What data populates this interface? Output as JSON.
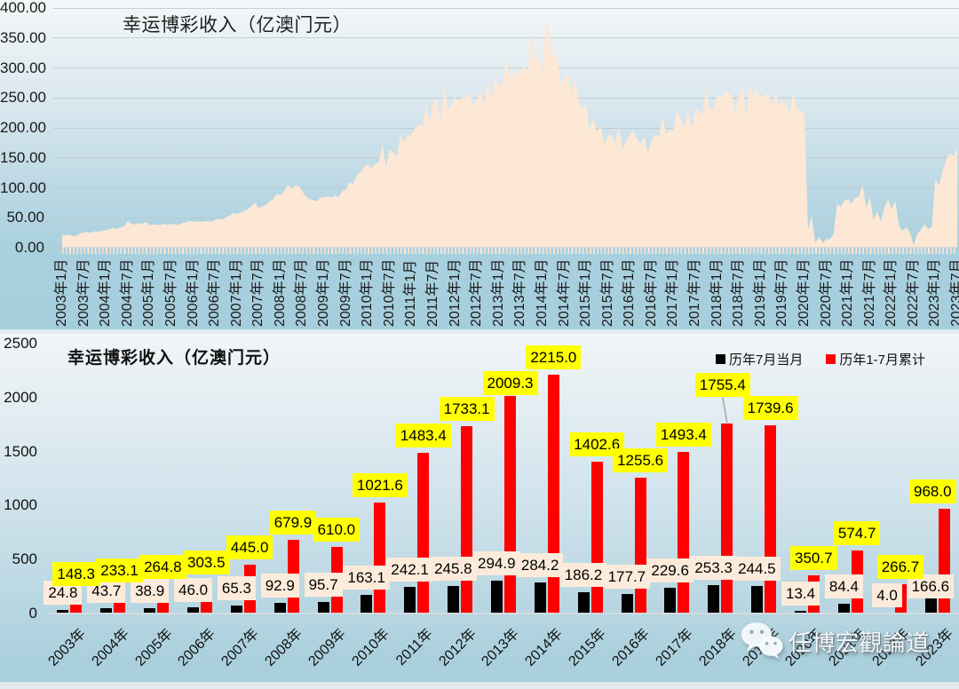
{
  "top_chart": {
    "title": "幸运博彩收入（亿澳门元）"
  },
  "bottom_chart": {
    "title": "幸运博彩收入（亿澳门元）",
    "legend": [
      {
        "label": "历年7月当月",
        "color": "#000000"
      },
      {
        "label": "历年1-7月累计",
        "color": "#ff0000"
      }
    ]
  },
  "watermark": {
    "text": "任博宏觀論道",
    "icon": "wechat-icon"
  },
  "chart_data": [
    {
      "type": "area",
      "title": "幸运博彩收入（亿澳门元）",
      "ylabel": "",
      "xlabel": "",
      "ylim": [
        0,
        400
      ],
      "y_ticks": [
        "0.00",
        "50.00",
        "100.00",
        "150.00",
        "200.00",
        "250.00",
        "300.00",
        "350.00",
        "400.00"
      ],
      "grid": true,
      "legend_position": "none",
      "fill_color": "#fce8d5",
      "x_unit": "month",
      "x_start": "2003年1月",
      "x_end": "2023年7月",
      "x_tick_labels": [
        "2003年1月",
        "2003年7月",
        "2004年1月",
        "2004年7月",
        "2005年1月",
        "2005年7月",
        "2006年1月",
        "2006年7月",
        "2007年1月",
        "2007年7月",
        "2008年1月",
        "2008年7月",
        "2009年1月",
        "2009年7月",
        "2010年1月",
        "2010年7月",
        "2011年1月",
        "2011年7月",
        "2012年1月",
        "2012年7月",
        "2013年1月",
        "2013年7月",
        "2014年1月",
        "2014年7月",
        "2015年1月",
        "2015年7月",
        "2016年1月",
        "2016年7月",
        "2017年1月",
        "2017年7月",
        "2018年1月",
        "2018年7月",
        "2019年1月",
        "2019年7月",
        "2020年1月",
        "2020年7月",
        "2021年1月",
        "2021年7月",
        "2022年1月",
        "2022年7月",
        "2023年1月",
        "2023年7月"
      ],
      "values": [
        20.8,
        19.9,
        21.4,
        18.6,
        19.2,
        23.6,
        24.8,
        25.5,
        24.2,
        26.8,
        25.9,
        27.5,
        28.5,
        30.2,
        31.8,
        31.0,
        33.2,
        34.7,
        43.7,
        39.5,
        37.8,
        40.2,
        39.0,
        42.5,
        36.2,
        38.4,
        37.5,
        37.0,
        38.8,
        38.0,
        38.9,
        38.5,
        37.2,
        40.6,
        41.8,
        44.1,
        42.0,
        43.5,
        42.8,
        43.2,
        44.0,
        42.0,
        46.0,
        47.5,
        46.0,
        50.2,
        52.8,
        57.0,
        55.6,
        58.0,
        60.2,
        63.5,
        67.8,
        74.6,
        65.3,
        68.5,
        71.0,
        76.2,
        80.5,
        88.8,
        87.4,
        91.8,
        104.7,
        98.6,
        101.5,
        103.0,
        92.9,
        84.3,
        80.5,
        78.2,
        77.0,
        83.0,
        83.2,
        84.7,
        82.9,
        86.1,
        83.4,
        94.0,
        95.7,
        109.6,
        105.2,
        120.4,
        125.0,
        133.8,
        139.4,
        131.2,
        139.7,
        141.9,
        170.8,
        135.5,
        163.1,
        157.7,
        151.5,
        187.7,
        175.8,
        188.8,
        186.7,
        199.9,
        203.9,
        204.6,
        240.3,
        205.9,
        242.1,
        247.7,
        212.4,
        268.5,
        230.7,
        238.7,
        250.4,
        242.9,
        249.9,
        250.0,
        260.8,
        233.3,
        245.8,
        261.4,
        238.7,
        277.0,
        248.8,
        282.0,
        268.6,
        270.8,
        313.4,
        283.1,
        295.9,
        282.6,
        294.9,
        301.9,
        289.6,
        364.8,
        301.8,
        334.6,
        287.4,
        380.1,
        354.5,
        313.2,
        323.5,
        272.1,
        284.2,
        288.8,
        255.6,
        280.3,
        242.7,
        233.0,
        237.5,
        195.4,
        215.3,
        191.7,
        203.5,
        173.0,
        186.2,
        188.6,
        175.4,
        200.6,
        164.3,
        177.0,
        186.7,
        194.8,
        179.8,
        173.4,
        184.4,
        158.8,
        177.7,
        188.4,
        184.0,
        217.8,
        189.2,
        196.1,
        192.5,
        230.6,
        211.8,
        201.6,
        227.4,
        199.9,
        229.6,
        229.5,
        219.2,
        265.6,
        230.0,
        227.7,
        255.5,
        250.2,
        259.5,
        257.1,
        254.9,
        224.9,
        253.3,
        265.6,
        219.5,
        273.3,
        250.0,
        264.5,
        249.4,
        253.7,
        258.4,
        235.9,
        258.8,
        238.9,
        244.5,
        241.3,
        220.8,
        261.4,
        229.8,
        228.4,
        221.4,
        31.0,
        52.6,
        7.5,
        17.6,
        7.2,
        13.4,
        13.3,
        22.1,
        72.7,
        67.5,
        78.2,
        80.2,
        73.1,
        83.3,
        84.0,
        104.5,
        65.2,
        84.4,
        44.4,
        59.4,
        43.7,
        67.5,
        79.6,
        63.4,
        77.6,
        36.7,
        26.8,
        33.4,
        24.8,
        4.0,
        21.9,
        29.6,
        39.0,
        30.0,
        35.0,
        115.1,
        103.2,
        127.3,
        147.2,
        156.5,
        152.1,
        166.6
      ]
    },
    {
      "type": "bar",
      "title": "幸运博彩收入（亿澳门元）",
      "ylim": [
        0,
        2500
      ],
      "y_ticks": [
        "0",
        "500",
        "1000",
        "1500",
        "2000",
        "2500"
      ],
      "grid": false,
      "legend_position": "top-right",
      "categories": [
        "2003年",
        "2004年",
        "2005年",
        "2006年",
        "2007年",
        "2008年",
        "2009年",
        "2010年",
        "2011年",
        "2012年",
        "2013年",
        "2014年",
        "2015年",
        "2016年",
        "2017年",
        "2018年",
        "2019年",
        "2020年",
        "2021年",
        "2022年",
        "2023年"
      ],
      "series": [
        {
          "name": "历年7月当月",
          "color": "#000000",
          "label_bg": "#fcebdb",
          "values": [
            24.8,
            43.7,
            38.9,
            46.0,
            65.3,
            92.9,
            95.7,
            163.1,
            242.1,
            245.8,
            294.9,
            284.2,
            186.2,
            177.7,
            229.6,
            253.3,
            244.5,
            13.4,
            84.4,
            4.0,
            166.6
          ],
          "labels": [
            "24.8",
            "43.7",
            "38.9",
            "46.0",
            "65.3",
            "92.9",
            "95.7",
            "163.1",
            "242.1",
            "245.8",
            "294.9",
            "284.2",
            "186.2",
            "177.7",
            "229.6",
            "253.3",
            "244.5",
            "13.4",
            "84.4",
            "4.0",
            "166.6"
          ]
        },
        {
          "name": "历年1-7月累计",
          "color": "#ff0000",
          "label_bg": "#ffff00",
          "values": [
            148.3,
            233.1,
            264.8,
            303.5,
            445.0,
            679.9,
            610.0,
            1021.6,
            1483.4,
            1733.1,
            2009.3,
            2215.0,
            1402.6,
            1255.6,
            1493.4,
            1755.4,
            1739.6,
            350.7,
            574.7,
            266.7,
            968.0
          ],
          "labels": [
            "148.3",
            "233.1",
            "264.8",
            "303.5",
            "445.0",
            "679.9",
            "610.0",
            "1021.6",
            "1483.4",
            "1733.1",
            "2009.3",
            "2215.0",
            "1402.6",
            "1255.6",
            "1493.4",
            "1755.4",
            "1739.6",
            "350.7",
            "574.7",
            "266.7",
            "968.0"
          ]
        }
      ]
    }
  ]
}
